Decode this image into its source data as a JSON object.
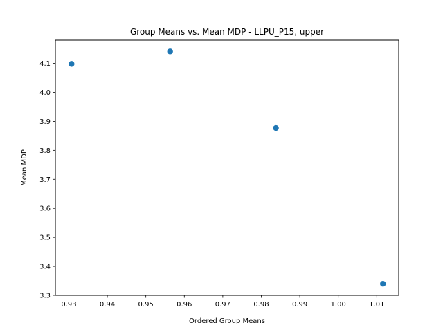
{
  "chart_data": {
    "type": "scatter",
    "title": "Group Means vs. Mean MDP - LLPU_P15, upper",
    "xlabel": "Ordered Group Means",
    "ylabel": "Mean MDP",
    "xlim": [
      0.9265,
      1.0157
    ],
    "ylim": [
      3.3,
      4.18
    ],
    "x_ticks": [
      0.93,
      0.94,
      0.95,
      0.96,
      0.97,
      0.98,
      0.99,
      1.0,
      1.01
    ],
    "x_tick_labels": [
      "0.93",
      "0.94",
      "0.95",
      "0.96",
      "0.97",
      "0.98",
      "0.99",
      "1.00",
      "1.01"
    ],
    "y_ticks": [
      3.3,
      3.4,
      3.5,
      3.6,
      3.7,
      3.8,
      3.9,
      4.0,
      4.1
    ],
    "y_tick_labels": [
      "3.3",
      "3.4",
      "3.5",
      "3.6",
      "3.7",
      "3.8",
      "3.9",
      "4.0",
      "4.1"
    ],
    "grid": false,
    "marker_color": "#1f77b4",
    "points": [
      {
        "x": 0.9307,
        "y": 4.098
      },
      {
        "x": 0.9563,
        "y": 4.141
      },
      {
        "x": 0.9838,
        "y": 3.877
      },
      {
        "x": 1.0116,
        "y": 3.34
      }
    ]
  }
}
